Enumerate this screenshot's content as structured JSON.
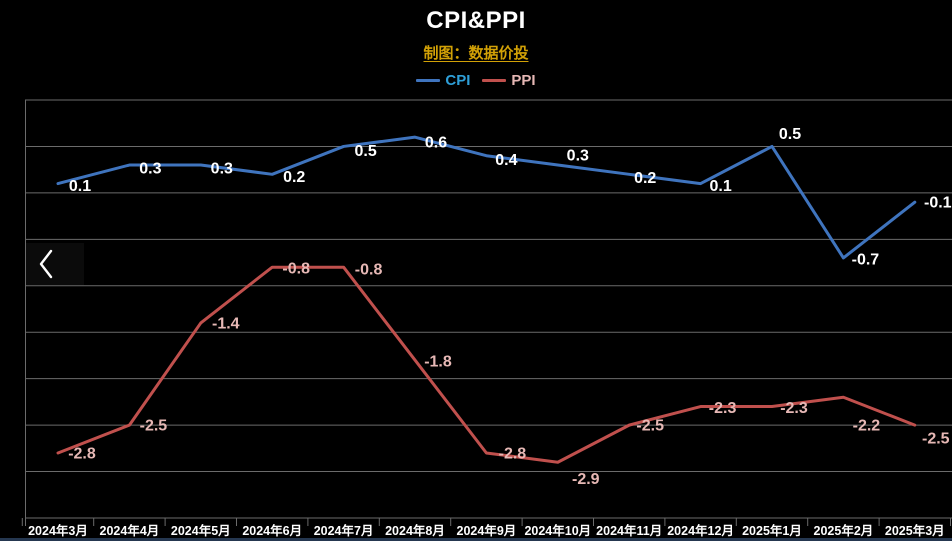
{
  "title": "CPI&PPI",
  "subtitle": "制图：数据价投",
  "legend": {
    "items": [
      {
        "label": "CPI",
        "text_color": "#2E9FD8",
        "line_color": "#3F74BE"
      },
      {
        "label": "PPI",
        "text_color": "#E6B8B5",
        "line_color": "#C0504D"
      }
    ]
  },
  "colors": {
    "background": "#000000",
    "title": "#FFFFFF",
    "subtitle": "#D2A106",
    "grid": "#6B6B6B",
    "axis_labels": "#FFFFFF",
    "bottom_strip": "#253750",
    "nav_chevron": "#FFFFFF"
  },
  "chart_data": {
    "type": "line",
    "title": "CPI&PPI",
    "categories": [
      "2024年3月",
      "2024年4月",
      "2024年5月",
      "2024年6月",
      "2024年7月",
      "2024年8月",
      "2024年9月",
      "2024年10月",
      "2024年11月",
      "2024年12月",
      "2025年1月",
      "2025年2月",
      "2025年3月"
    ],
    "series": [
      {
        "name": "CPI",
        "color": "#3F74BE",
        "label_color": "#FFFFFF",
        "values": [
          0.1,
          0.3,
          0.3,
          0.2,
          0.5,
          0.6,
          0.4,
          0.3,
          0.2,
          0.1,
          0.5,
          -0.7,
          -0.1
        ],
        "label_offsets": [
          [
            22,
            2
          ],
          [
            21,
            3
          ],
          [
            21,
            3
          ],
          [
            22,
            2
          ],
          [
            22,
            4
          ],
          [
            21,
            5
          ],
          [
            20,
            4
          ],
          [
            20,
            -10
          ],
          [
            16,
            3
          ],
          [
            20,
            2
          ],
          [
            18,
            -13
          ],
          [
            22,
            1
          ],
          [
            23,
            0
          ]
        ]
      },
      {
        "name": "PPI",
        "color": "#C0504D",
        "label_color": "#E6B8B5",
        "values": [
          -2.8,
          -2.5,
          -1.4,
          -0.8,
          -0.8,
          -1.8,
          -2.8,
          -2.9,
          -2.5,
          -2.3,
          -2.3,
          -2.2,
          -2.5
        ],
        "label_offsets": [
          [
            24,
            0
          ],
          [
            24,
            0
          ],
          [
            25,
            0
          ],
          [
            24,
            1
          ],
          [
            25,
            2
          ],
          [
            23,
            1
          ],
          [
            26,
            0
          ],
          [
            28,
            16
          ],
          [
            21,
            0
          ],
          [
            22,
            1
          ],
          [
            22,
            1
          ],
          [
            23,
            28
          ],
          [
            21,
            13
          ]
        ]
      }
    ],
    "ylim": [
      -3.5,
      1.0
    ],
    "grid_step": 0.5,
    "grid": true,
    "legend_position": "top",
    "xlabel": "",
    "ylabel": ""
  }
}
